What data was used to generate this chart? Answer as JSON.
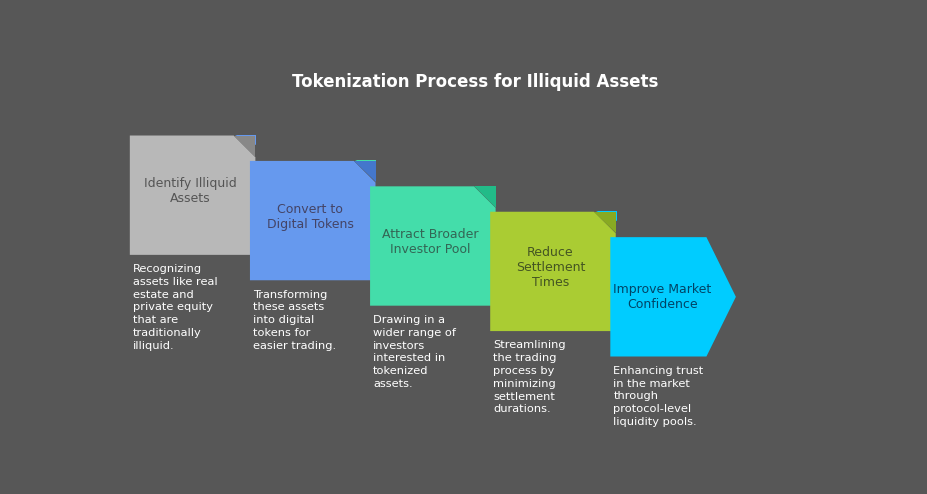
{
  "title": "Tokenization Process for Illiquid Assets",
  "background_color": "#575757",
  "title_color": "#ffffff",
  "title_fontsize": 12,
  "steps": [
    {
      "label": "Identify Illiquid\nAssets",
      "color": "#b8b8b8",
      "fold_color": "#888888",
      "text_color": "#555555",
      "description": "Recognizing\nassets like real\nestate and\nprivate equity\nthat are\ntraditionally\nilliquid."
    },
    {
      "label": "Convert to\nDigital Tokens",
      "color": "#6699ee",
      "fold_color": "#4477cc",
      "text_color": "#444466",
      "description": "Transforming\nthese assets\ninto digital\ntokens for\neasier trading."
    },
    {
      "label": "Attract Broader\nInvestor Pool",
      "color": "#44ddaa",
      "fold_color": "#22bb88",
      "text_color": "#336655",
      "description": "Drawing in a\nwider range of\ninvestors\ninterested in\ntokenized\nassets."
    },
    {
      "label": "Reduce\nSettlement\nTimes",
      "color": "#aacc33",
      "fold_color": "#88aa22",
      "text_color": "#445522",
      "description": "Streamlining\nthe trading\nprocess by\nminimizing\nsettlement\ndurations."
    },
    {
      "label": "Improve Market\nConfidence",
      "color": "#00ccff",
      "fold_color": "#0099cc",
      "text_color": "#004466",
      "description": "Enhancing trust\nin the market\nthrough\nprotocol-level\nliquidity pools."
    }
  ],
  "desc_color": "#ffffff",
  "desc_fontsize": 8.2,
  "next_colors": [
    "#6699ee",
    "#44ddaa",
    "#aacc33",
    "#00ccff",
    "#00ccff"
  ]
}
